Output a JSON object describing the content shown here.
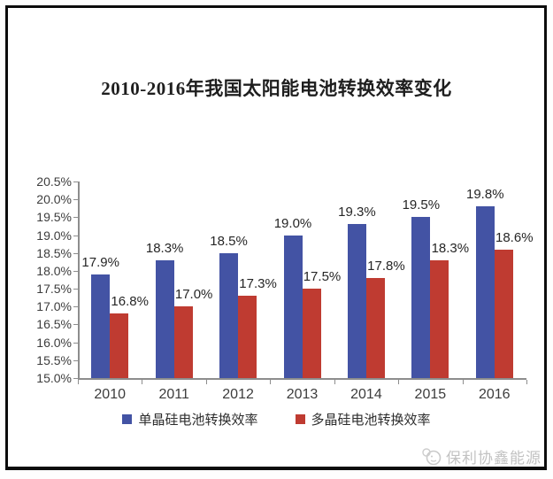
{
  "chart": {
    "title": "2010-2016年我国太阳能电池转换效率变化"
  },
  "chart_data": {
    "type": "bar",
    "title": "2010-2016年我国太阳能电池转换效率变化",
    "categories": [
      "2010",
      "2011",
      "2012",
      "2013",
      "2014",
      "2015",
      "2016"
    ],
    "series": [
      {
        "key": "mono-si",
        "name": "单晶硅电池转换效率",
        "color": "#4353a4",
        "values": [
          17.9,
          18.3,
          18.5,
          19.0,
          19.3,
          19.5,
          19.8
        ],
        "labels": [
          "17.9%",
          "18.3%",
          "18.5%",
          "19.0%",
          "19.3%",
          "19.5%",
          "19.8%"
        ]
      },
      {
        "key": "poly-si",
        "name": "多晶硅电池转换效率",
        "color": "#bf3b31",
        "values": [
          16.8,
          17.0,
          17.3,
          17.5,
          17.8,
          18.3,
          18.6
        ],
        "labels": [
          "16.8%",
          "17.0%",
          "17.3%",
          "17.5%",
          "17.8%",
          "18.3%",
          "18.6%"
        ]
      }
    ],
    "ylim": [
      15.0,
      20.5
    ],
    "ytick_step": 0.5,
    "ytick_labels": [
      "20.5%",
      "20.0%",
      "19.5%",
      "19.0%",
      "18.5%",
      "18.0%",
      "17.5%",
      "17.0%",
      "16.5%",
      "16.0%",
      "15.5%",
      "15.0%"
    ],
    "grid": false,
    "legend_position": "bottom"
  },
  "legend": {
    "items": [
      {
        "label": "单晶硅电池转换效率",
        "color": "#4353a4"
      },
      {
        "label": "多晶硅电池转换效率",
        "color": "#bf3b31"
      }
    ]
  },
  "watermark": {
    "text": "保利协鑫能源"
  }
}
